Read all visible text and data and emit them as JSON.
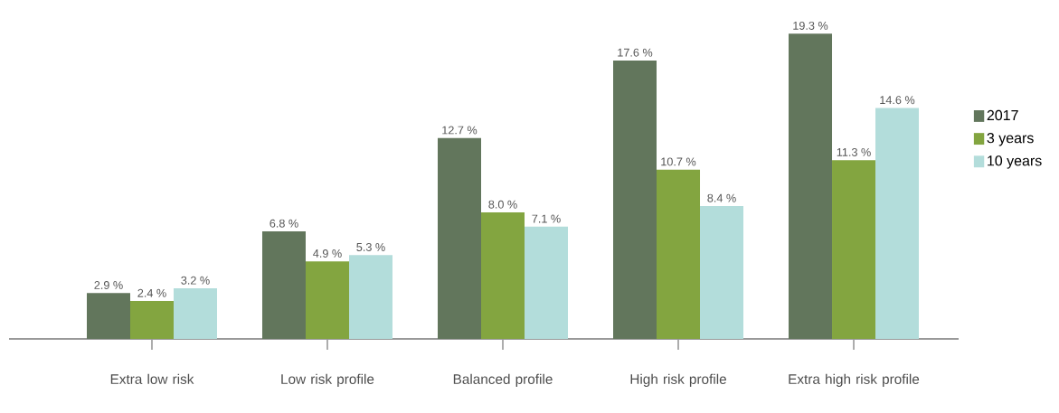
{
  "chart_data": {
    "type": "bar",
    "categories": [
      "Extra low risk",
      "Low risk profile",
      "Balanced profile",
      "High risk profile",
      "Extra high risk profile"
    ],
    "series": [
      {
        "name": "2017",
        "color": "#62765c",
        "values": [
          2.9,
          6.8,
          12.7,
          17.6,
          19.3
        ],
        "value_labels": [
          "2.9 %",
          "6.8 %",
          "12.7 %",
          "17.6 %",
          "19.3 %"
        ]
      },
      {
        "name": "3 years",
        "color": "#83a540",
        "values": [
          2.4,
          4.9,
          8.0,
          10.7,
          11.3
        ],
        "value_labels": [
          "2.4 %",
          "4.9 %",
          "8.0 %",
          "10.7 %",
          "11.3 %"
        ]
      },
      {
        "name": "10 years",
        "color": "#b3dddb",
        "values": [
          3.2,
          5.3,
          7.1,
          8.4,
          14.6
        ],
        "value_labels": [
          "3.2 %",
          "5.3 %",
          "7.1 %",
          "8.4 %",
          "14.6 %"
        ]
      }
    ],
    "legend": "right"
  }
}
